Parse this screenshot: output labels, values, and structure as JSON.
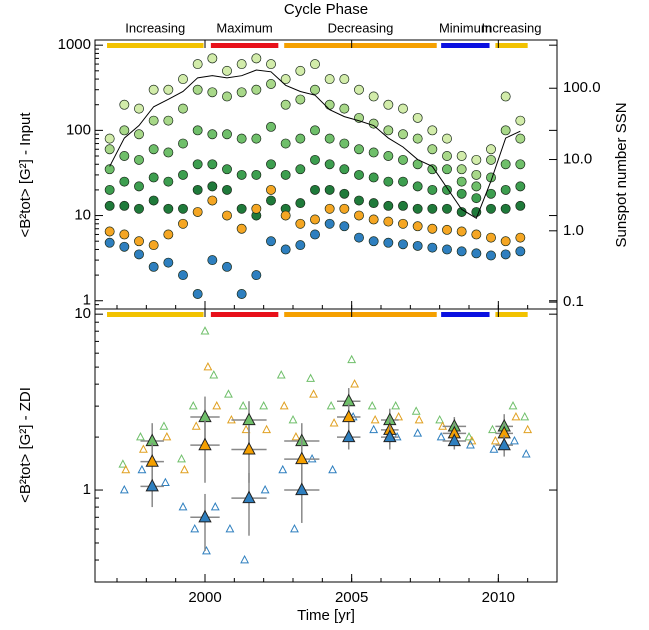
{
  "chart_data": [
    {
      "type": "scatter",
      "title": "Cycle Phase",
      "ylabel": "<B²tot> [G²] - Input",
      "y2label": "Sunspot number SSN",
      "log_y": true,
      "xlim": [
        1996.25,
        2012
      ],
      "xticks": [
        2000,
        2005,
        2010
      ],
      "ylim": [
        0.8,
        1150
      ],
      "yticks": [
        1,
        10,
        100,
        1000
      ],
      "y2lim": [
        0.08,
        475
      ],
      "y2ticks": [
        {
          "value": 0.1,
          "label": "0.1"
        },
        {
          "value": 1,
          "label": "1.0"
        },
        {
          "value": 10,
          "label": "10.0"
        },
        {
          "value": 100,
          "label": "100.0"
        }
      ],
      "phases": [
        {
          "label": "Increasing",
          "start": 1996.66,
          "end": 1999.95,
          "color": "#f2c200"
        },
        {
          "label": "Maximum",
          "start": 2000.2,
          "end": 2002.5,
          "color": "#e8101a"
        },
        {
          "label": "Decreasing",
          "start": 2002.7,
          "end": 2007.9,
          "color": "#f5a000"
        },
        {
          "label": "Minimum",
          "start": 2008.05,
          "end": 2009.7,
          "color": "#0a10e0"
        },
        {
          "label": "Increasing",
          "start": 2009.9,
          "end": 2011.0,
          "color": "#f2c200"
        }
      ],
      "series": [
        {
          "color": "#d2ecaa",
          "marker": "circle",
          "x": [
            1996.75,
            1997.25,
            1997.75,
            1998.25,
            1998.75,
            1999.25,
            1999.75,
            2000.25,
            2000.75,
            2001.25,
            2001.75,
            2002.25,
            2002.75,
            2003.25,
            2003.75,
            2004.25,
            2004.75,
            2005.25,
            2005.75,
            2006.25,
            2006.75,
            2007.25,
            2007.75,
            2008.25,
            2008.75,
            2009.25,
            2009.75,
            2010.25,
            2010.75
          ],
          "values": [
            80,
            200,
            180,
            300,
            300,
            400,
            600,
            700,
            500,
            600,
            700,
            600,
            400,
            500,
            600,
            400,
            400,
            300,
            250,
            200,
            180,
            140,
            100,
            80,
            50,
            45,
            60,
            250,
            130
          ]
        },
        {
          "color": "#a8d889",
          "marker": "circle",
          "x": [
            1996.75,
            1997.25,
            1997.75,
            1998.25,
            1998.75,
            1999.25,
            1999.75,
            2000.25,
            2000.75,
            2001.25,
            2001.75,
            2002.25,
            2002.75,
            2003.25,
            2003.75,
            2004.25,
            2004.75,
            2005.25,
            2005.75,
            2006.25,
            2006.75,
            2007.25,
            2007.75,
            2008.25,
            2008.75,
            2009.25,
            2009.75,
            2010.25,
            2010.75
          ],
          "values": [
            60,
            100,
            90,
            130,
            130,
            180,
            300,
            280,
            250,
            280,
            300,
            350,
            200,
            230,
            300,
            200,
            180,
            140,
            120,
            100,
            90,
            80,
            60,
            50,
            35,
            30,
            45,
            100,
            80
          ]
        },
        {
          "color": "#6fbf6a",
          "marker": "circle",
          "x": [
            1996.75,
            1997.25,
            1997.75,
            1998.25,
            1998.75,
            1999.25,
            1999.75,
            2000.25,
            2000.75,
            2001.25,
            2001.75,
            2002.25,
            2002.75,
            2003.25,
            2003.75,
            2004.25,
            2004.75,
            2005.25,
            2005.75,
            2006.25,
            2006.75,
            2007.25,
            2007.75,
            2008.25,
            2008.75,
            2009.25,
            2009.75,
            2010.25,
            2010.75
          ],
          "values": [
            35,
            50,
            45,
            60,
            55,
            70,
            100,
            90,
            90,
            80,
            80,
            110,
            70,
            80,
            100,
            80,
            70,
            60,
            55,
            50,
            45,
            40,
            35,
            35,
            25,
            22,
            28,
            40,
            40
          ]
        },
        {
          "color": "#3d9e4f",
          "marker": "circle",
          "x": [
            1996.75,
            1997.25,
            1997.75,
            1998.25,
            1998.75,
            1999.25,
            1999.75,
            2000.25,
            2000.75,
            2001.25,
            2001.75,
            2002.25,
            2002.75,
            2003.25,
            2003.75,
            2004.25,
            2004.75,
            2005.25,
            2005.75,
            2006.25,
            2006.75,
            2007.25,
            2007.75,
            2008.25,
            2008.75,
            2009.25,
            2009.75,
            2010.25,
            2010.75
          ],
          "values": [
            20,
            25,
            22,
            28,
            25,
            30,
            40,
            40,
            35,
            30,
            30,
            40,
            30,
            35,
            45,
            40,
            35,
            30,
            28,
            25,
            25,
            22,
            20,
            20,
            18,
            16,
            18,
            20,
            22
          ]
        },
        {
          "color": "#1f7a3a",
          "marker": "circle",
          "x": [
            1996.75,
            1997.25,
            1997.75,
            1998.25,
            1998.75,
            1999.25,
            1999.75,
            2000.25,
            2000.75,
            2001.25,
            2001.75,
            2002.25,
            2002.75,
            2003.25,
            2003.75,
            2004.25,
            2004.75,
            2005.25,
            2005.75,
            2006.25,
            2006.75,
            2007.25,
            2007.75,
            2008.25,
            2008.75,
            2009.25,
            2009.75,
            2010.25,
            2010.75
          ],
          "values": [
            13,
            13,
            12,
            15,
            12,
            12,
            20,
            22,
            20,
            12,
            10,
            15,
            12,
            14,
            20,
            20,
            18,
            15,
            14,
            13,
            13,
            12,
            12,
            12,
            11,
            11,
            12,
            12,
            13
          ]
        },
        {
          "color": "#f5a623",
          "marker": "circle",
          "x": [
            1996.75,
            1997.25,
            1997.75,
            1998.25,
            1998.75,
            1999.25,
            1999.75,
            2000.25,
            2000.75,
            2001.25,
            2001.75,
            2002.25,
            2002.75,
            2003.25,
            2003.75,
            2004.25,
            2004.75,
            2005.25,
            2005.75,
            2006.25,
            2006.75,
            2007.25,
            2007.75,
            2008.25,
            2008.75,
            2009.25,
            2009.75,
            2010.25,
            2010.75
          ],
          "values": [
            6.5,
            6,
            5,
            4.5,
            6,
            8,
            11,
            15,
            10,
            7,
            12,
            20,
            10,
            8,
            9,
            12,
            12,
            10,
            9,
            8.5,
            8,
            7.5,
            7,
            6.8,
            6.5,
            6,
            5.5,
            5,
            5.5
          ]
        },
        {
          "color": "#2e7fbf",
          "marker": "circle",
          "x": [
            1996.75,
            1997.25,
            1997.75,
            1998.25,
            1998.75,
            1999.25,
            1999.75,
            2000.25,
            2000.75,
            2001.25,
            2001.75,
            2002.25,
            2002.75,
            2003.25,
            2003.75,
            2004.25,
            2004.75,
            2005.25,
            2005.75,
            2006.25,
            2006.75,
            2007.25,
            2007.75,
            2008.25,
            2008.75,
            2009.25,
            2009.75,
            2010.25,
            2010.75
          ],
          "values": [
            4.8,
            4.3,
            3.5,
            2.5,
            2.8,
            2,
            1.2,
            3,
            2.5,
            1.2,
            2,
            5,
            4,
            4.5,
            6,
            8,
            7.5,
            5.5,
            5,
            4.8,
            4.6,
            4.4,
            4.2,
            4,
            3.8,
            3.6,
            3.4,
            3.5,
            3.8
          ]
        },
        {
          "color": "#000000",
          "marker": "line",
          "axis": "y2",
          "x": [
            1996.75,
            1997.25,
            1997.75,
            1998.25,
            1998.75,
            1999.25,
            1999.75,
            2000.25,
            2000.75,
            2001.25,
            2001.75,
            2002.25,
            2002.75,
            2003.25,
            2003.75,
            2004.25,
            2004.75,
            2005.25,
            2005.75,
            2006.25,
            2006.75,
            2007.25,
            2007.75,
            2008.25,
            2008.75,
            2009.25,
            2009.75,
            2010.25,
            2010.75
          ],
          "values": [
            8,
            20,
            30,
            55,
            70,
            90,
            140,
            150,
            140,
            150,
            180,
            170,
            110,
            90,
            80,
            50,
            40,
            35,
            30,
            20,
            15,
            10,
            8,
            4,
            2,
            1.5,
            5,
            20,
            25
          ]
        }
      ]
    },
    {
      "type": "scatter",
      "ylabel": "<B²tot> [G²] - ZDI",
      "xlabel": "Time [yr]",
      "log_y": true,
      "xlim": [
        1996.25,
        2012
      ],
      "xticks": [
        2000,
        2005,
        2010
      ],
      "ylim": [
        0.3,
        10.7
      ],
      "yticks": [
        1,
        10
      ],
      "series": [
        {
          "color": "#6fbf6a",
          "marker": "triangle-open",
          "x": [
            1997.2,
            1997.8,
            1998.6,
            1999.2,
            1999.6,
            2000.0,
            2000.3,
            2000.8,
            2001.3,
            2002.0,
            2002.6,
            2003.0,
            2003.6,
            2004.3,
            2005.0,
            2005.7,
            2006.5,
            2007.2,
            2008.0,
            2009.0,
            2009.8,
            2010.5,
            2010.9
          ],
          "values": [
            1.4,
            2.0,
            2.3,
            1.5,
            3.0,
            8.0,
            4.5,
            3.5,
            3.0,
            3.0,
            4.5,
            2.5,
            4.3,
            3.0,
            5.5,
            3.0,
            3.0,
            2.8,
            2.5,
            2.0,
            2.2,
            3.0,
            2.6
          ]
        },
        {
          "color": "#e0a020",
          "marker": "triangle-open",
          "x": [
            1997.3,
            1997.9,
            1998.7,
            1999.3,
            1999.7,
            2000.1,
            2000.4,
            2000.9,
            2001.4,
            2002.1,
            2002.7,
            2003.1,
            2003.7,
            2004.4,
            2005.1,
            2005.8,
            2006.6,
            2007.3,
            2008.1,
            2009.1,
            2009.9,
            2010.6,
            2011.0
          ],
          "values": [
            1.3,
            1.7,
            2.0,
            1.3,
            2.3,
            5.0,
            3.0,
            2.5,
            2.2,
            2.2,
            3.0,
            2.0,
            3.5,
            2.4,
            4.0,
            2.5,
            2.6,
            2.5,
            2.3,
            1.9,
            1.9,
            2.6,
            2.2
          ]
        },
        {
          "color": "#2e7fbf",
          "marker": "triangle-open",
          "x": [
            1997.25,
            1997.85,
            1998.65,
            1999.25,
            1999.65,
            2000.05,
            2000.35,
            2000.85,
            2001.35,
            2002.05,
            2002.65,
            2003.05,
            2003.65,
            2004.35,
            2005.05,
            2005.75,
            2006.55,
            2007.25,
            2008.05,
            2009.05,
            2009.85,
            2010.55,
            2010.95
          ],
          "values": [
            1.0,
            1.3,
            1.1,
            0.8,
            0.6,
            0.45,
            0.8,
            0.6,
            0.4,
            1.0,
            1.3,
            0.6,
            1.5,
            1.3,
            2.6,
            2.2,
            2.0,
            2.1,
            2.0,
            1.8,
            1.7,
            1.9,
            1.6
          ]
        },
        {
          "color": "#6fbf6a",
          "marker": "triangle",
          "x": [
            1998.2,
            2000.0,
            2001.5,
            2003.3,
            2004.9,
            2006.3,
            2008.5,
            2010.2
          ],
          "values": [
            1.9,
            2.6,
            2.5,
            1.9,
            3.2,
            2.5,
            2.3,
            2.3
          ],
          "errors": [
            0.5,
            0.8,
            0.7,
            0.5,
            0.6,
            0.4,
            0.3,
            0.4
          ],
          "xerr": [
            0.4,
            0.5,
            0.6,
            0.6,
            0.4,
            0.3,
            0.4,
            0.3
          ]
        },
        {
          "color": "#f5a000",
          "marker": "triangle",
          "x": [
            1998.2,
            2000.0,
            2001.5,
            2003.3,
            2004.9,
            2006.3,
            2008.5,
            2010.2
          ],
          "values": [
            1.45,
            1.8,
            1.7,
            1.5,
            2.6,
            2.2,
            2.1,
            2.1
          ],
          "errors": [
            0.4,
            0.7,
            0.6,
            0.5,
            0.5,
            0.4,
            0.3,
            0.3
          ],
          "xerr": [
            0.4,
            0.5,
            0.6,
            0.6,
            0.4,
            0.3,
            0.4,
            0.3
          ]
        },
        {
          "color": "#2e7fbf",
          "marker": "triangle",
          "x": [
            1998.2,
            2000.0,
            2001.5,
            2003.3,
            2004.9,
            2006.3,
            2008.5,
            2010.2
          ],
          "values": [
            1.05,
            0.7,
            0.9,
            1.0,
            2.0,
            2.0,
            1.9,
            1.8
          ],
          "errors": [
            0.25,
            0.25,
            0.35,
            0.35,
            0.3,
            0.3,
            0.2,
            0.25
          ],
          "xerr": [
            0.4,
            0.5,
            0.6,
            0.6,
            0.4,
            0.3,
            0.4,
            0.3
          ]
        }
      ]
    }
  ]
}
